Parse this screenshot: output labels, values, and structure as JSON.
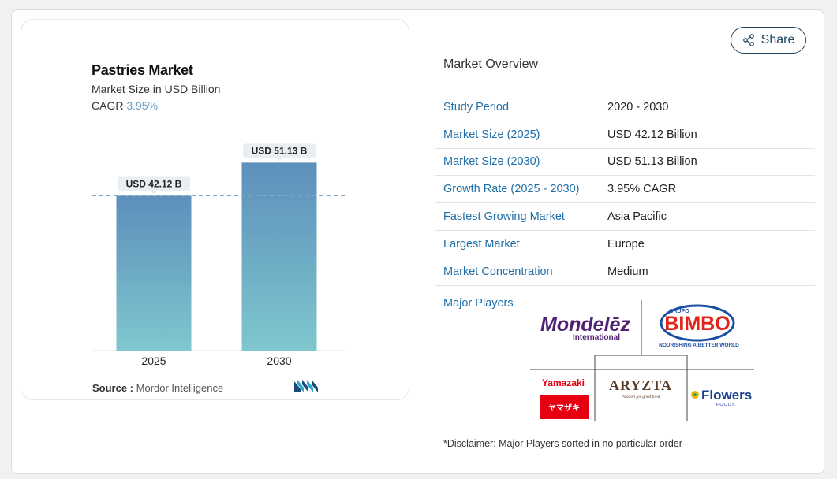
{
  "chart": {
    "title": "Pastries Market",
    "subtitle": "Market Size in USD Billion",
    "cagr_label": "CAGR",
    "cagr_value": "3.95%",
    "source_label": "Source :",
    "source_value": "Mordor Intelligence"
  },
  "chart_data": {
    "type": "bar",
    "categories": [
      "2025",
      "2030"
    ],
    "values": [
      42.12,
      51.13
    ],
    "data_labels": [
      "USD 42.12 B",
      "USD 51.13 B"
    ],
    "title": "Pastries Market",
    "ylabel": "Market Size in USD Billion",
    "ylim": [
      0,
      60
    ],
    "bar_colors": [
      "#7fc7cf",
      "#5d8fbb"
    ],
    "reference_line": 42.12
  },
  "share": {
    "label": "Share"
  },
  "overview": {
    "title": "Market Overview",
    "rows": [
      {
        "label": "Study Period",
        "value": "2020 - 2030"
      },
      {
        "label": "Market Size (2025)",
        "value": "USD 42.12 Billion"
      },
      {
        "label": "Market Size (2030)",
        "value": "USD 51.13 Billion"
      },
      {
        "label": "Growth Rate (2025 - 2030)",
        "value": "3.95% CAGR"
      },
      {
        "label": "Fastest Growing Market",
        "value": "Asia Pacific"
      },
      {
        "label": "Largest Market",
        "value": "Europe"
      },
      {
        "label": "Market Concentration",
        "value": "Medium"
      }
    ],
    "players_label": "Major Players",
    "players": {
      "mondelez": "Mondelēz",
      "mondelez_sub": "International",
      "bimbo_top": "GRUPO",
      "bimbo": "BIMBO",
      "bimbo_tag": "NOURISHING A BETTER WORLD",
      "yamazaki": "Yamazaki",
      "yamazaki_jp": "ヤマザキ",
      "aryzta": "ARYZTA",
      "aryzta_tag": "Passion for good food",
      "flowers": "Flowers",
      "flowers_sub": "FOODS"
    },
    "disclaimer": "*Disclaimer: Major Players sorted in no particular order"
  },
  "colors": {
    "accent_blue": "#1f6fa8",
    "bar_top": "#5d8fbb",
    "bar_bottom": "#7fc7cf"
  }
}
